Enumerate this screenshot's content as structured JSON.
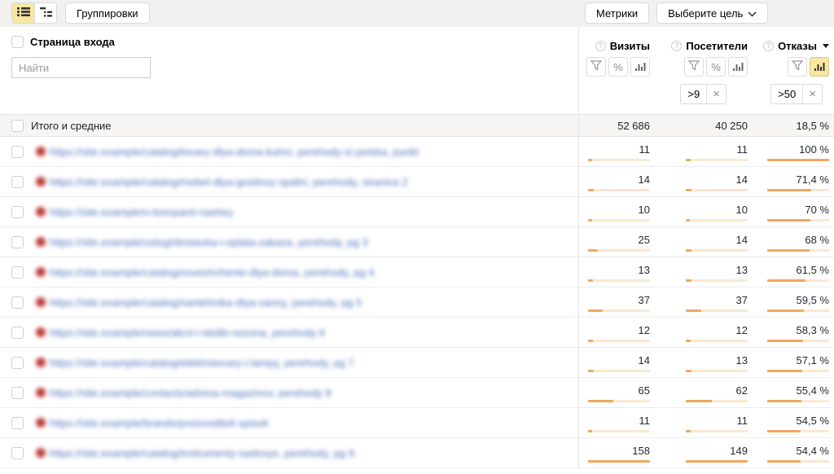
{
  "toolbar": {
    "grouping_label": "Группировки",
    "metrics_label": "Метрики",
    "goal_label": "Выберите цель"
  },
  "icons": {
    "percent": "%",
    "close": "×",
    "question": "?"
  },
  "dimension": {
    "title": "Страница входа",
    "search_placeholder": "Найти"
  },
  "columns": [
    {
      "key": "visits",
      "label": "Визиты",
      "sorted": false,
      "filter_chip": null
    },
    {
      "key": "visitors",
      "label": "Посетители",
      "sorted": false,
      "filter_chip": ">9"
    },
    {
      "key": "bounce",
      "label": "Отказы",
      "sorted": true,
      "filter_chip": ">50"
    }
  ],
  "totals": {
    "label": "Итого и средние",
    "visits": "52 686",
    "visitors": "40 250",
    "bounce": "18,5 %"
  },
  "bars": {
    "visits_max": 158,
    "visitors_max": 149
  },
  "rows": [
    {
      "url_text_blurred": "https://site.example/catalog/tovary-dlya-doma-kuhni, perehody-iz-poiska, punkt 1",
      "visits": 11,
      "visitors": 11,
      "bounce_display": "100 %",
      "bounce_pct": 100
    },
    {
      "url_text_blurred": "https://site.example/catalog/mebel-dlya-gostinoy-spalni, perehody, stranica 2",
      "visits": 14,
      "visitors": 14,
      "bounce_display": "71,4 %",
      "bounce_pct": 71.4
    },
    {
      "url_text_blurred": "https://site.example/o-kompanii-nashey",
      "visits": 10,
      "visitors": 10,
      "bounce_display": "70 %",
      "bounce_pct": 70
    },
    {
      "url_text_blurred": "https://site.example/uslugi/dostavka-i-oplata-zakaza, perehody, pg 3",
      "visits": 25,
      "visitors": 14,
      "bounce_display": "68 %",
      "bounce_pct": 68
    },
    {
      "url_text_blurred": "https://site.example/catalog/osveshchenie-dlya-doma, perehody, pg 4",
      "visits": 13,
      "visitors": 13,
      "bounce_display": "61,5 %",
      "bounce_pct": 61.5
    },
    {
      "url_text_blurred": "https://site.example/catalog/santehnika-dlya-vanny, perehody, pg 5",
      "visits": 37,
      "visitors": 37,
      "bounce_display": "59,5 %",
      "bounce_pct": 59.5
    },
    {
      "url_text_blurred": "https://site.example/news/akcii-i-skidki-sezona, perehody 6",
      "visits": 12,
      "visitors": 12,
      "bounce_display": "58,3 %",
      "bounce_pct": 58.3
    },
    {
      "url_text_blurred": "https://site.example/catalog/elektrotovary-i-lampy, perehody, pg 7",
      "visits": 14,
      "visitors": 13,
      "bounce_display": "57,1 %",
      "bounce_pct": 57.1
    },
    {
      "url_text_blurred": "https://site.example/contacts/adresa-magazinov, perehody 8",
      "visits": 65,
      "visitors": 62,
      "bounce_display": "55,4 %",
      "bounce_pct": 55.4
    },
    {
      "url_text_blurred": "https://site.example/brands/proizvoditeli-spisok",
      "visits": 11,
      "visitors": 11,
      "bounce_display": "54,5 %",
      "bounce_pct": 54.5
    },
    {
      "url_text_blurred": "https://site.example/catalog/instrumenty-sadovye, perehody, pg 9",
      "visits": 158,
      "visitors": 149,
      "bounce_display": "54,4 %",
      "bounce_pct": 54.4
    }
  ]
}
